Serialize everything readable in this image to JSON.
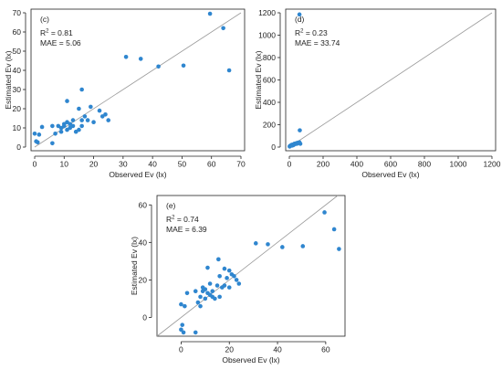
{
  "chart_data": [
    {
      "type": "scatter",
      "panel": "(c)",
      "xlabel": "Observed Ev (lx)",
      "ylabel": "Estimated Ev (lx)",
      "r2_label": "R",
      "r2_sup": "2",
      "r2_value": " = 0.81",
      "mae_text": "MAE = 5.06",
      "xlim": [
        0,
        70
      ],
      "ylim": [
        0,
        70
      ],
      "xticks": [
        0,
        10,
        20,
        30,
        40,
        50,
        60,
        70
      ],
      "yticks": [
        0,
        10,
        20,
        30,
        40,
        50,
        60,
        70
      ],
      "reference_line": "1:1",
      "points": [
        [
          59.5,
          69.5
        ],
        [
          64,
          62
        ],
        [
          66,
          40
        ],
        [
          50.5,
          42.5
        ],
        [
          42,
          42
        ],
        [
          36,
          46
        ],
        [
          31,
          47
        ],
        [
          16,
          30
        ],
        [
          11,
          24
        ],
        [
          22,
          19
        ],
        [
          19,
          21
        ],
        [
          24,
          17
        ],
        [
          25,
          14
        ],
        [
          20,
          13
        ],
        [
          18,
          14
        ],
        [
          15,
          20
        ],
        [
          16,
          14
        ],
        [
          13,
          14
        ],
        [
          12,
          12
        ],
        [
          11,
          13
        ],
        [
          10,
          11
        ],
        [
          10,
          12
        ],
        [
          9,
          10
        ],
        [
          11,
          9
        ],
        [
          8,
          11
        ],
        [
          9,
          8
        ],
        [
          7,
          7
        ],
        [
          6,
          11
        ],
        [
          6,
          2
        ],
        [
          14,
          8
        ],
        [
          15,
          9
        ],
        [
          16,
          11
        ],
        [
          2.5,
          10.5
        ],
        [
          1.5,
          6.5
        ],
        [
          0,
          7
        ],
        [
          0.5,
          3
        ],
        [
          1,
          2.5
        ],
        [
          12,
          10
        ],
        [
          13,
          11
        ],
        [
          17,
          16
        ],
        [
          23,
          16
        ]
      ]
    },
    {
      "type": "scatter",
      "panel": "(d)",
      "xlabel": "Observed Ev (lx)",
      "ylabel": "Estimated Ev (lx)",
      "r2_label": "R",
      "r2_sup": "2",
      "r2_value": " = 0.23",
      "mae_text": "MAE = 33.74",
      "xlim": [
        0,
        1200
      ],
      "ylim": [
        0,
        1200
      ],
      "xticks": [
        0,
        200,
        400,
        600,
        800,
        1000,
        1200
      ],
      "yticks": [
        0,
        200,
        400,
        600,
        800,
        1000,
        1200
      ],
      "reference_line": "1:1",
      "points": [
        [
          60,
          1185
        ],
        [
          62,
          150
        ],
        [
          60,
          42
        ],
        [
          50,
          38
        ],
        [
          42,
          35
        ],
        [
          65,
          30
        ],
        [
          30,
          30
        ],
        [
          36,
          28
        ],
        [
          20,
          22
        ],
        [
          15,
          20
        ],
        [
          12,
          18
        ],
        [
          10,
          15
        ],
        [
          8,
          12
        ],
        [
          5,
          10
        ],
        [
          3,
          8
        ],
        [
          2,
          5
        ],
        [
          25,
          18
        ],
        [
          18,
          14
        ],
        [
          45,
          30
        ],
        [
          55,
          40
        ]
      ]
    },
    {
      "type": "scatter",
      "panel": "(e)",
      "xlabel": "Observed Ev (lx)",
      "ylabel": "Estimated Ev (lx)",
      "r2_label": "R",
      "r2_sup": "2",
      "r2_value": " = 0.74",
      "mae_text": "MAE = 6.39",
      "xlim": [
        -10,
        68
      ],
      "ylim": [
        -10,
        65
      ],
      "xticks": [
        0,
        20,
        40,
        60
      ],
      "yticks": [
        0,
        20,
        40,
        60
      ],
      "reference_line": "1:1",
      "points": [
        [
          59.5,
          56
        ],
        [
          63.5,
          47
        ],
        [
          65.5,
          36.5
        ],
        [
          50.5,
          38
        ],
        [
          42,
          37.5
        ],
        [
          36,
          39
        ],
        [
          31,
          39.5
        ],
        [
          15.5,
          31
        ],
        [
          11,
          26.5
        ],
        [
          22,
          22
        ],
        [
          19,
          21
        ],
        [
          24,
          18
        ],
        [
          23,
          20
        ],
        [
          20,
          16
        ],
        [
          16,
          22
        ],
        [
          18,
          17
        ],
        [
          15,
          17
        ],
        [
          13,
          11
        ],
        [
          14,
          10
        ],
        [
          12,
          12
        ],
        [
          11,
          13
        ],
        [
          10,
          15
        ],
        [
          9,
          16
        ],
        [
          9,
          14
        ],
        [
          8,
          11
        ],
        [
          7,
          8
        ],
        [
          8,
          6
        ],
        [
          6,
          14
        ],
        [
          10,
          10
        ],
        [
          12,
          18
        ],
        [
          16,
          11
        ],
        [
          18,
          26
        ],
        [
          20,
          25
        ],
        [
          2.5,
          13
        ],
        [
          1.5,
          6
        ],
        [
          0,
          7
        ],
        [
          0.5,
          -4
        ],
        [
          0,
          -6.5
        ],
        [
          1,
          -8
        ],
        [
          6,
          -8
        ],
        [
          17,
          16
        ],
        [
          13,
          14
        ],
        [
          21,
          23
        ]
      ]
    }
  ]
}
